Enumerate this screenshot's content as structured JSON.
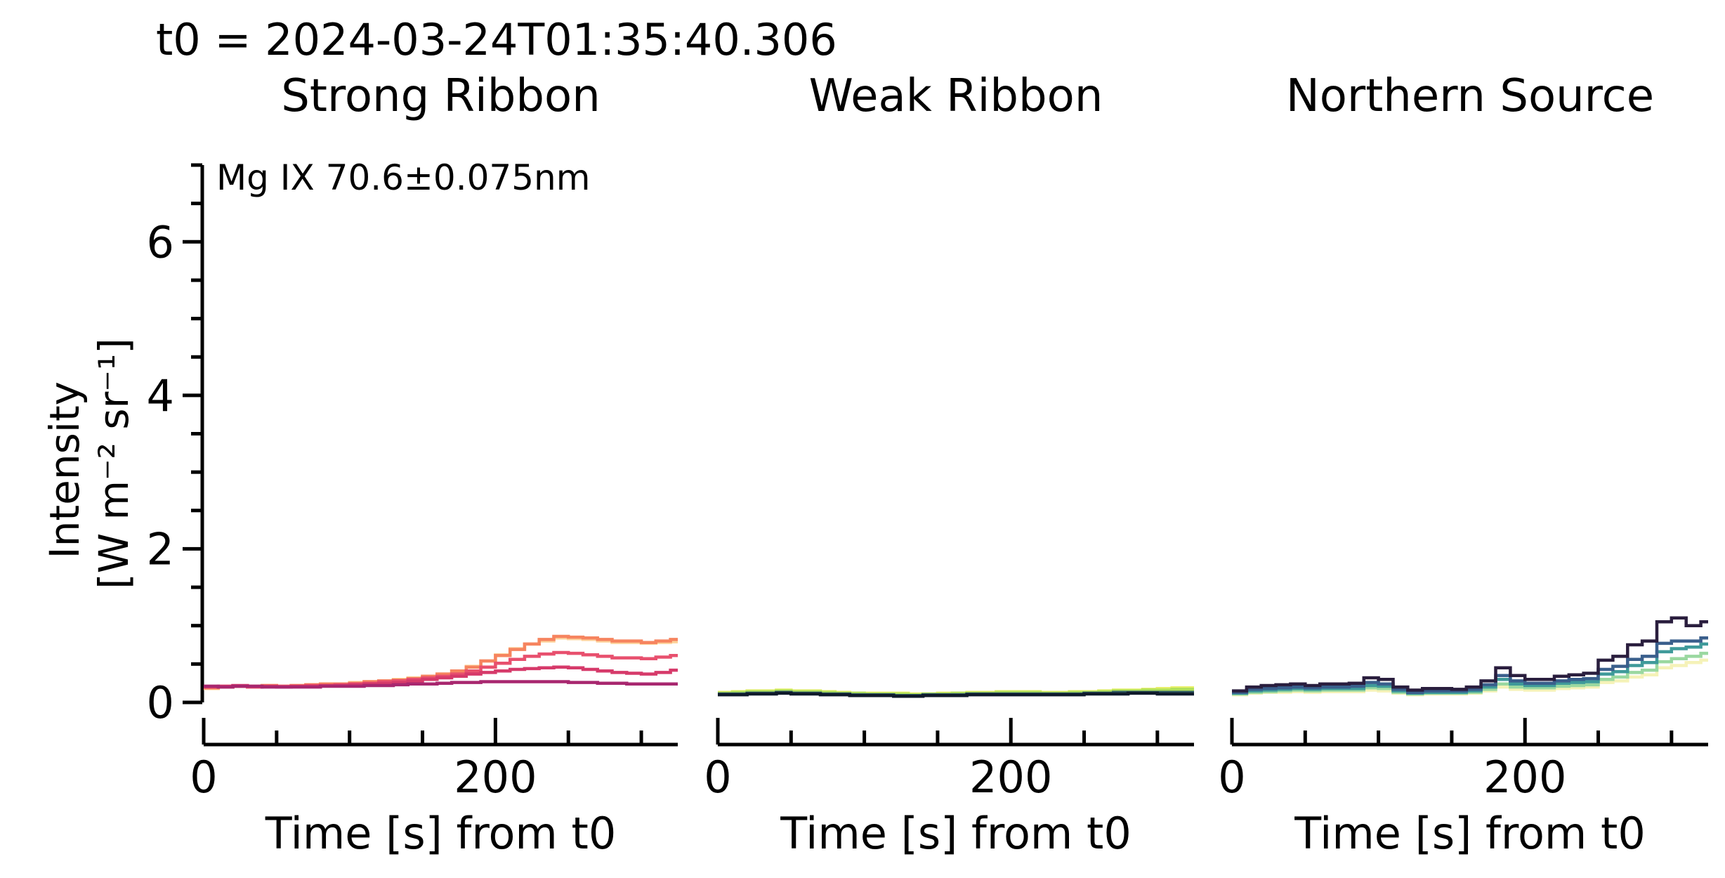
{
  "figure": {
    "suptitle": "t0 = 2024-03-24T01:35:40.306",
    "ylabel_line1": "Intensity",
    "ylabel_line2": "[W m⁻² sr⁻¹]",
    "annotation": "Mg IX 70.6±0.075nm"
  },
  "chart_data": [
    {
      "type": "line",
      "title": "Strong Ribbon",
      "xlabel": "Time [s] from t0",
      "ylabel": "Intensity [W m⁻² sr⁻¹]",
      "xlim": [
        0,
        325
      ],
      "ylim": [
        0,
        7
      ],
      "xticks": [
        "0",
        "200"
      ],
      "yticks": [
        "0",
        "2",
        "4",
        "6"
      ],
      "x": [
        0,
        10,
        20,
        30,
        40,
        50,
        60,
        70,
        80,
        90,
        100,
        110,
        120,
        130,
        140,
        150,
        160,
        170,
        180,
        190,
        200,
        210,
        220,
        230,
        240,
        250,
        260,
        270,
        280,
        290,
        300,
        310,
        320
      ],
      "series": [
        {
          "color": "#fdd49e",
          "values": [
            0.18,
            0.2,
            0.21,
            0.2,
            0.22,
            0.21,
            0.22,
            0.23,
            0.24,
            0.24,
            0.26,
            0.27,
            0.28,
            0.3,
            0.32,
            0.34,
            0.37,
            0.41,
            0.47,
            0.54,
            0.62,
            0.7,
            0.76,
            0.8,
            0.84,
            0.83,
            0.82,
            0.8,
            0.78,
            0.78,
            0.77,
            0.78,
            0.79
          ]
        },
        {
          "color": "#f6845f",
          "values": [
            0.19,
            0.2,
            0.21,
            0.21,
            0.22,
            0.21,
            0.22,
            0.23,
            0.24,
            0.24,
            0.25,
            0.27,
            0.28,
            0.29,
            0.31,
            0.34,
            0.37,
            0.41,
            0.46,
            0.54,
            0.61,
            0.69,
            0.76,
            0.82,
            0.86,
            0.85,
            0.84,
            0.82,
            0.8,
            0.8,
            0.78,
            0.8,
            0.82
          ]
        },
        {
          "color": "#e8506e",
          "values": [
            0.2,
            0.21,
            0.21,
            0.2,
            0.21,
            0.21,
            0.21,
            0.22,
            0.22,
            0.23,
            0.24,
            0.25,
            0.27,
            0.28,
            0.3,
            0.32,
            0.34,
            0.37,
            0.41,
            0.46,
            0.51,
            0.56,
            0.6,
            0.63,
            0.65,
            0.64,
            0.62,
            0.6,
            0.58,
            0.58,
            0.57,
            0.59,
            0.61
          ]
        },
        {
          "color": "#d63a6a",
          "values": [
            0.21,
            0.21,
            0.22,
            0.21,
            0.21,
            0.2,
            0.21,
            0.21,
            0.22,
            0.22,
            0.23,
            0.24,
            0.25,
            0.26,
            0.28,
            0.3,
            0.32,
            0.34,
            0.37,
            0.39,
            0.41,
            0.43,
            0.44,
            0.45,
            0.46,
            0.45,
            0.43,
            0.41,
            0.39,
            0.38,
            0.37,
            0.39,
            0.42
          ]
        },
        {
          "color": "#a8276f",
          "values": [
            0.21,
            0.2,
            0.21,
            0.21,
            0.2,
            0.2,
            0.2,
            0.2,
            0.21,
            0.21,
            0.21,
            0.22,
            0.22,
            0.23,
            0.24,
            0.24,
            0.25,
            0.26,
            0.26,
            0.27,
            0.27,
            0.27,
            0.27,
            0.27,
            0.27,
            0.26,
            0.26,
            0.25,
            0.25,
            0.24,
            0.24,
            0.24,
            0.24
          ]
        }
      ]
    },
    {
      "type": "line",
      "title": "Weak Ribbon",
      "xlabel": "Time [s] from t0",
      "ylabel": "",
      "xlim": [
        0,
        325
      ],
      "ylim": [
        0,
        7
      ],
      "xticks": [
        "0",
        "200"
      ],
      "yticks": [],
      "x": [
        0,
        10,
        20,
        30,
        40,
        50,
        60,
        70,
        80,
        90,
        100,
        110,
        120,
        130,
        140,
        150,
        160,
        170,
        180,
        190,
        200,
        210,
        220,
        230,
        240,
        250,
        260,
        270,
        280,
        290,
        300,
        310,
        320
      ],
      "series": [
        {
          "color": "#e8f06a",
          "values": [
            0.13,
            0.14,
            0.15,
            0.15,
            0.16,
            0.15,
            0.15,
            0.14,
            0.13,
            0.12,
            0.12,
            0.12,
            0.12,
            0.11,
            0.11,
            0.12,
            0.12,
            0.13,
            0.13,
            0.14,
            0.14,
            0.14,
            0.13,
            0.13,
            0.14,
            0.14,
            0.15,
            0.16,
            0.16,
            0.17,
            0.18,
            0.19,
            0.19
          ]
        },
        {
          "color": "#b0e05a",
          "values": [
            0.12,
            0.13,
            0.14,
            0.14,
            0.15,
            0.14,
            0.14,
            0.13,
            0.12,
            0.12,
            0.11,
            0.11,
            0.11,
            0.1,
            0.11,
            0.11,
            0.12,
            0.12,
            0.12,
            0.13,
            0.13,
            0.13,
            0.12,
            0.12,
            0.13,
            0.13,
            0.14,
            0.15,
            0.15,
            0.16,
            0.16,
            0.17,
            0.17
          ]
        },
        {
          "color": "#2f5a66",
          "values": [
            0.11,
            0.11,
            0.12,
            0.12,
            0.13,
            0.12,
            0.12,
            0.11,
            0.11,
            0.1,
            0.1,
            0.1,
            0.09,
            0.09,
            0.1,
            0.1,
            0.1,
            0.11,
            0.11,
            0.11,
            0.11,
            0.11,
            0.11,
            0.11,
            0.11,
            0.12,
            0.12,
            0.13,
            0.13,
            0.13,
            0.13,
            0.13,
            0.13
          ]
        },
        {
          "color": "#0f1a2a",
          "values": [
            0.1,
            0.1,
            0.11,
            0.11,
            0.12,
            0.11,
            0.11,
            0.1,
            0.1,
            0.09,
            0.09,
            0.09,
            0.08,
            0.08,
            0.09,
            0.09,
            0.09,
            0.1,
            0.1,
            0.1,
            0.1,
            0.1,
            0.1,
            0.1,
            0.1,
            0.11,
            0.11,
            0.11,
            0.12,
            0.12,
            0.11,
            0.11,
            0.11
          ]
        }
      ]
    },
    {
      "type": "line",
      "title": "Northern Source",
      "xlabel": "Time [s] from t0",
      "ylabel": "",
      "xlim": [
        0,
        325
      ],
      "ylim": [
        0,
        7
      ],
      "xticks": [
        "0",
        "200"
      ],
      "yticks": [],
      "x": [
        0,
        10,
        20,
        30,
        40,
        50,
        60,
        70,
        80,
        90,
        100,
        110,
        120,
        130,
        140,
        150,
        160,
        170,
        180,
        190,
        200,
        210,
        220,
        230,
        240,
        250,
        260,
        270,
        280,
        290,
        300,
        310,
        320
      ],
      "series": [
        {
          "color": "#f5f2b8",
          "values": [
            0.1,
            0.12,
            0.13,
            0.13,
            0.14,
            0.13,
            0.14,
            0.14,
            0.14,
            0.16,
            0.15,
            0.12,
            0.1,
            0.11,
            0.11,
            0.11,
            0.12,
            0.15,
            0.2,
            0.17,
            0.16,
            0.16,
            0.18,
            0.19,
            0.2,
            0.26,
            0.28,
            0.33,
            0.36,
            0.45,
            0.48,
            0.52,
            0.55
          ]
        },
        {
          "color": "#9ad8a0",
          "values": [
            0.11,
            0.13,
            0.14,
            0.15,
            0.16,
            0.15,
            0.16,
            0.16,
            0.16,
            0.19,
            0.18,
            0.13,
            0.11,
            0.12,
            0.12,
            0.12,
            0.13,
            0.17,
            0.24,
            0.2,
            0.19,
            0.19,
            0.21,
            0.22,
            0.23,
            0.3,
            0.33,
            0.39,
            0.42,
            0.53,
            0.57,
            0.6,
            0.64
          ]
        },
        {
          "color": "#3f9a9a",
          "values": [
            0.12,
            0.15,
            0.16,
            0.17,
            0.18,
            0.17,
            0.18,
            0.18,
            0.18,
            0.22,
            0.21,
            0.15,
            0.12,
            0.13,
            0.13,
            0.13,
            0.15,
            0.2,
            0.3,
            0.24,
            0.22,
            0.22,
            0.25,
            0.26,
            0.27,
            0.37,
            0.4,
            0.48,
            0.52,
            0.66,
            0.7,
            0.72,
            0.76
          ]
        },
        {
          "color": "#3a5f8c",
          "values": [
            0.13,
            0.17,
            0.18,
            0.19,
            0.2,
            0.19,
            0.2,
            0.2,
            0.21,
            0.26,
            0.24,
            0.17,
            0.13,
            0.15,
            0.15,
            0.15,
            0.17,
            0.23,
            0.35,
            0.28,
            0.25,
            0.25,
            0.28,
            0.3,
            0.31,
            0.43,
            0.47,
            0.56,
            0.6,
            0.77,
            0.8,
            0.8,
            0.84
          ]
        },
        {
          "color": "#2a1e3e",
          "values": [
            0.15,
            0.2,
            0.22,
            0.23,
            0.24,
            0.22,
            0.24,
            0.24,
            0.25,
            0.32,
            0.3,
            0.2,
            0.16,
            0.18,
            0.18,
            0.17,
            0.2,
            0.28,
            0.45,
            0.35,
            0.3,
            0.3,
            0.34,
            0.36,
            0.38,
            0.55,
            0.6,
            0.75,
            0.8,
            1.05,
            1.1,
            1.0,
            1.05
          ]
        }
      ]
    }
  ]
}
